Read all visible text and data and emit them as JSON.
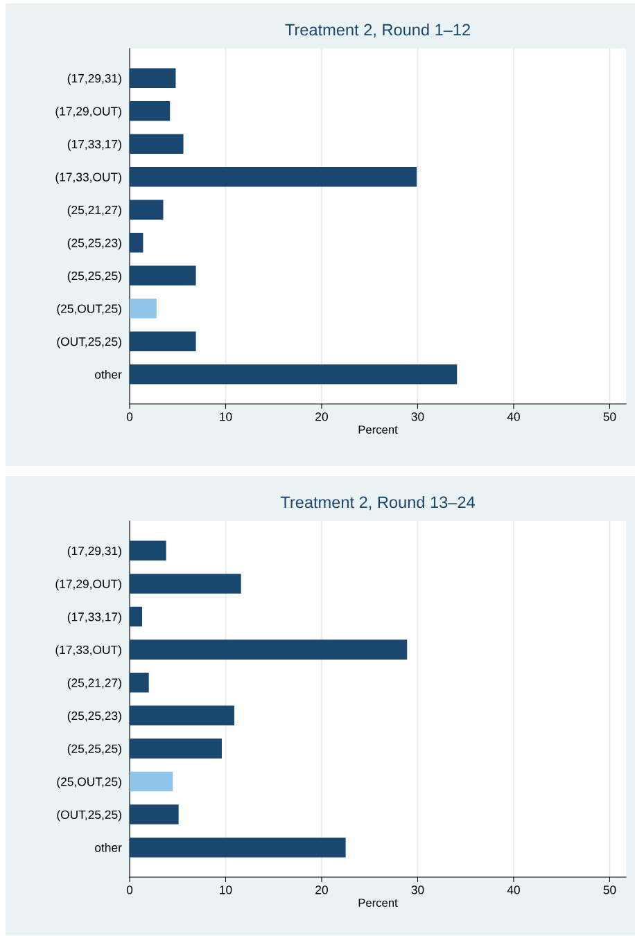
{
  "chart_data": [
    {
      "type": "bar",
      "orientation": "horizontal",
      "title": "Treatment 2, Round 1–12",
      "xlabel": "Percent",
      "categories": [
        "(17,29,31)",
        "(17,29,OUT)",
        "(17,33,17)",
        "(17,33,OUT)",
        "(25,21,27)",
        "(25,25,23)",
        "(25,25,25)",
        "(25,OUT,25)",
        "(OUT,25,25)",
        "other"
      ],
      "values": [
        4.8,
        4.2,
        5.6,
        29.9,
        3.5,
        1.4,
        6.9,
        2.8,
        6.9,
        34.1
      ],
      "colors": [
        "#1a476f",
        "#1a476f",
        "#1a476f",
        "#1a476f",
        "#1a476f",
        "#1a476f",
        "#1a476f",
        "#90c4ea",
        "#1a476f",
        "#1a476f"
      ],
      "xlim": [
        0,
        51.7
      ],
      "xticks": [
        0,
        10,
        20,
        30,
        40,
        50
      ],
      "grid": "x"
    },
    {
      "type": "bar",
      "orientation": "horizontal",
      "title": "Treatment 2, Round 13–24",
      "xlabel": "Percent",
      "categories": [
        "(17,29,31)",
        "(17,29,OUT)",
        "(17,33,17)",
        "(17,33,OUT)",
        "(25,21,27)",
        "(25,25,23)",
        "(25,25,25)",
        "(25,OUT,25)",
        "(OUT,25,25)",
        "other"
      ],
      "values": [
        3.8,
        11.6,
        1.3,
        28.9,
        2.0,
        10.9,
        9.6,
        4.5,
        5.1,
        22.5
      ],
      "colors": [
        "#1a476f",
        "#1a476f",
        "#1a476f",
        "#1a476f",
        "#1a476f",
        "#1a476f",
        "#1a476f",
        "#90c4ea",
        "#1a476f",
        "#1a476f"
      ],
      "xlim": [
        0,
        51.7
      ],
      "xticks": [
        0,
        10,
        20,
        30,
        40,
        50
      ],
      "grid": "x"
    }
  ]
}
